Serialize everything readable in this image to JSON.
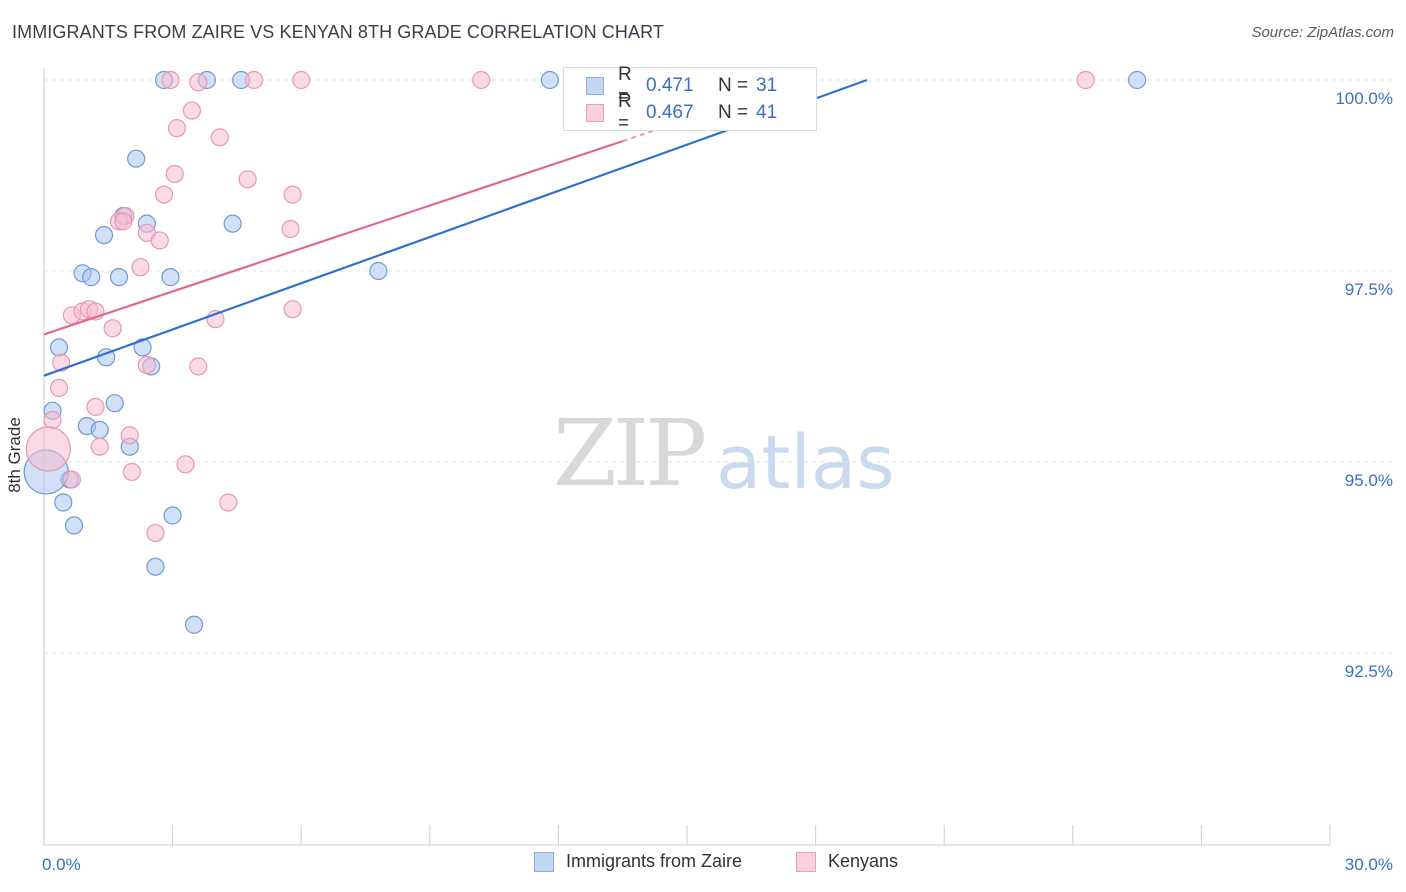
{
  "header": {
    "title": "IMMIGRANTS FROM ZAIRE VS KENYAN 8TH GRADE CORRELATION CHART",
    "source": "Source: ZipAtlas.com"
  },
  "watermark": {
    "zip": "ZIP",
    "atlas": "atlas"
  },
  "legend": {
    "rows": [
      {
        "r_label": "R =",
        "r_value": "0.471",
        "n_label": "N =",
        "n_value": "31",
        "color": "#a9c6ef",
        "border": "#7aa3dc"
      },
      {
        "r_label": "R =",
        "r_value": "0.467",
        "n_label": "N =",
        "n_value": "41",
        "color": "#f6bcd0",
        "border": "#e991b0"
      }
    ]
  },
  "bottom_legend": {
    "items": [
      {
        "label": "Immigrants from Zaire",
        "color": "#c3d7f2",
        "border": "#8fb0de"
      },
      {
        "label": "Kenyans",
        "color": "#f9d0de",
        "border": "#ea9fba"
      }
    ]
  },
  "chart_data": {
    "type": "scatter",
    "title": "IMMIGRANTS FROM ZAIRE VS KENYAN 8TH GRADE CORRELATION CHART",
    "xlabel": "",
    "ylabel": "8th Grade",
    "xlim": [
      0,
      30
    ],
    "ylim": [
      90.3,
      100.3
    ],
    "x_tick_labels": [
      {
        "value": 0,
        "label": "0.0%"
      },
      {
        "value": 30,
        "label": "30.0%"
      }
    ],
    "y_tick_labels": [
      {
        "value": 100.0,
        "label": "100.0%"
      },
      {
        "value": 97.5,
        "label": "97.5%"
      },
      {
        "value": 95.0,
        "label": "95.0%"
      },
      {
        "value": 92.5,
        "label": "92.5%"
      }
    ],
    "grid": true,
    "series": [
      {
        "name": "Immigrants from Zaire",
        "color": "#a9c6ef",
        "edge": "#6f9ad6",
        "line_color": "#2f6fcf",
        "trend": {
          "x0": 0,
          "y0": 96.13,
          "x1": 19.2,
          "y1": 100.0
        },
        "points": [
          [
            2.8,
            100.0,
            0
          ],
          [
            3.8,
            100.0,
            0
          ],
          [
            4.6,
            100.0,
            0
          ],
          [
            11.8,
            100.0,
            0
          ],
          [
            25.5,
            100.0,
            0
          ],
          [
            2.15,
            98.97,
            0
          ],
          [
            1.85,
            98.22,
            0
          ],
          [
            2.4,
            98.12,
            0
          ],
          [
            4.4,
            98.12,
            0
          ],
          [
            1.4,
            97.97,
            0
          ],
          [
            0.9,
            97.47,
            0
          ],
          [
            1.1,
            97.42,
            0
          ],
          [
            1.75,
            97.42,
            0
          ],
          [
            2.95,
            97.42,
            0
          ],
          [
            7.8,
            97.5,
            0
          ],
          [
            0.35,
            96.5,
            0
          ],
          [
            2.3,
            96.5,
            0
          ],
          [
            1.45,
            96.37,
            0
          ],
          [
            2.5,
            96.25,
            0
          ],
          [
            0.2,
            95.67,
            0
          ],
          [
            1.65,
            95.77,
            0
          ],
          [
            1.0,
            95.47,
            0
          ],
          [
            1.3,
            95.42,
            0
          ],
          [
            2.0,
            95.2,
            0
          ],
          [
            0.6,
            94.77,
            0
          ],
          [
            0.45,
            94.47,
            0
          ],
          [
            0.7,
            94.17,
            0
          ],
          [
            3.0,
            94.3,
            0
          ],
          [
            2.6,
            93.63,
            0
          ],
          [
            3.5,
            92.87,
            0
          ],
          [
            0.05,
            94.87,
            1
          ]
        ]
      },
      {
        "name": "Kenyans",
        "color": "#f6bcd0",
        "edge": "#e897b4",
        "line_color": "#e0698f",
        "trend": {
          "x0": 0,
          "y0": 96.67,
          "x1": 13.5,
          "y1": 99.2
        },
        "trend_ext": {
          "x0": 13.5,
          "y0": 99.2,
          "x1": 15.5,
          "y1": 99.58
        },
        "points": [
          [
            2.95,
            100.0,
            0
          ],
          [
            3.6,
            99.97,
            0
          ],
          [
            4.9,
            100.0,
            0
          ],
          [
            6.0,
            100.0,
            0
          ],
          [
            10.2,
            100.0,
            0
          ],
          [
            24.3,
            100.0,
            0
          ],
          [
            3.45,
            99.6,
            0
          ],
          [
            3.1,
            99.37,
            0
          ],
          [
            4.1,
            99.25,
            0
          ],
          [
            3.05,
            98.77,
            0
          ],
          [
            4.75,
            98.7,
            0
          ],
          [
            2.8,
            98.5,
            0
          ],
          [
            5.8,
            98.5,
            0
          ],
          [
            1.9,
            98.22,
            0
          ],
          [
            1.75,
            98.15,
            0
          ],
          [
            2.4,
            98.0,
            0
          ],
          [
            2.7,
            97.9,
            0
          ],
          [
            5.75,
            98.05,
            0
          ],
          [
            2.25,
            97.55,
            0
          ],
          [
            0.65,
            96.92,
            0
          ],
          [
            0.9,
            96.97,
            0
          ],
          [
            1.05,
            97.0,
            0
          ],
          [
            5.8,
            97.0,
            0
          ],
          [
            4.0,
            96.87,
            0
          ],
          [
            1.6,
            96.75,
            0
          ],
          [
            0.4,
            96.3,
            0
          ],
          [
            2.4,
            96.27,
            0
          ],
          [
            3.6,
            96.25,
            0
          ],
          [
            0.35,
            95.97,
            0
          ],
          [
            1.2,
            95.72,
            0
          ],
          [
            0.2,
            95.55,
            0
          ],
          [
            2.0,
            95.35,
            0
          ],
          [
            1.3,
            95.2,
            0
          ],
          [
            3.3,
            94.97,
            0
          ],
          [
            2.05,
            94.87,
            0
          ],
          [
            0.65,
            94.77,
            0
          ],
          [
            4.3,
            94.47,
            0
          ],
          [
            2.6,
            94.07,
            0
          ],
          [
            1.2,
            96.97,
            0
          ],
          [
            0.1,
            95.17,
            1
          ],
          [
            1.85,
            98.15,
            0
          ]
        ]
      }
    ]
  }
}
